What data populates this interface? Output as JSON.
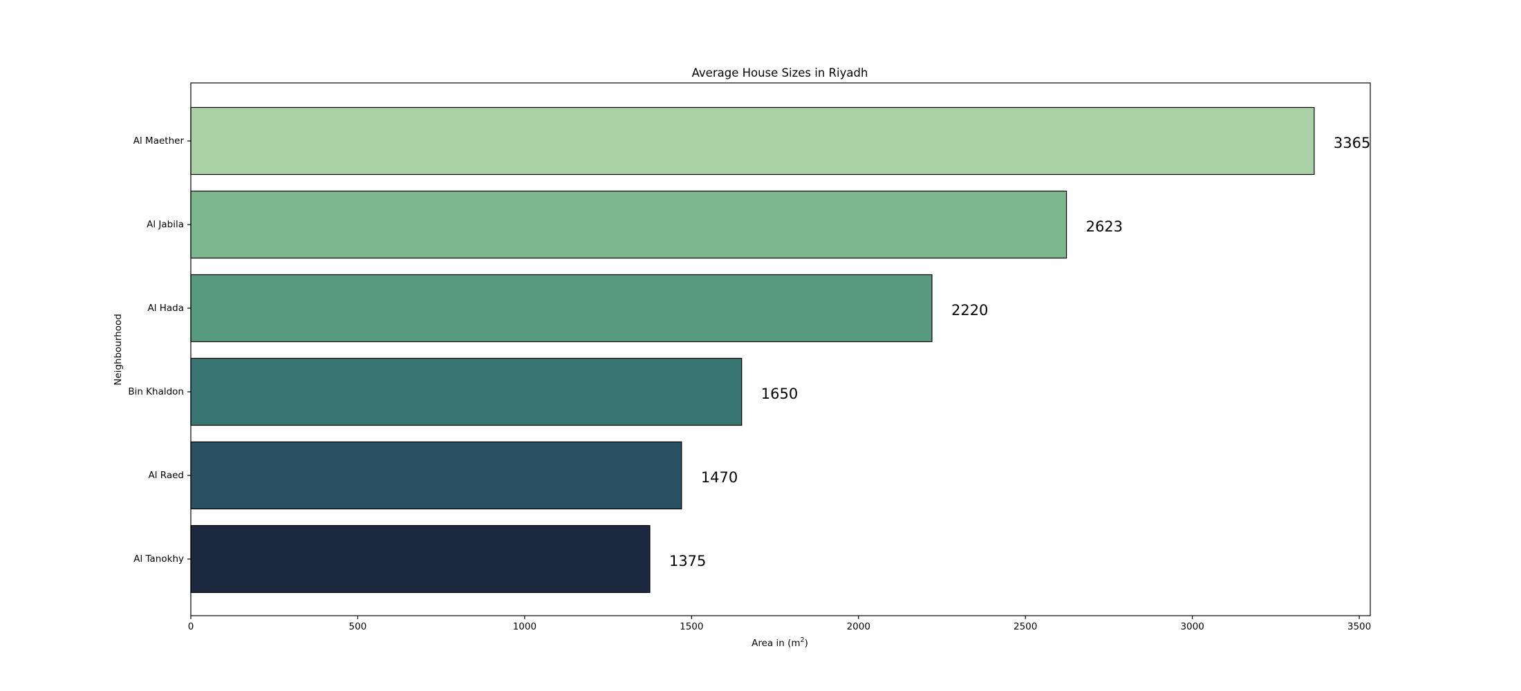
{
  "chart_data": {
    "type": "bar",
    "orientation": "horizontal",
    "title": "Average House Sizes in Riyadh",
    "xlabel": "Area in (m",
    "xlabel_sup": "2",
    "xlabel_end": ")",
    "ylabel": "Neighbourhood",
    "categories": [
      "Al Maether",
      "Al Jabila",
      "Al Hada",
      "Bin Khaldon",
      "Al Raed",
      "Al Tanokhy"
    ],
    "values": [
      3365,
      2623,
      2220,
      1650,
      1470,
      1375
    ],
    "value_labels": [
      "3365",
      "2623",
      "2220",
      "1650",
      "1470",
      "1375"
    ],
    "colors": [
      "#abd1a6",
      "#7db78e",
      "#589a81",
      "#397673",
      "#2a5163",
      "#1b283e"
    ],
    "xlim": [
      0,
      3533
    ],
    "xticks": [
      0,
      500,
      1000,
      1500,
      2000,
      2500,
      3000,
      3500
    ],
    "xtick_labels": [
      "0",
      "500",
      "1000",
      "1500",
      "2000",
      "2500",
      "3000",
      "3500"
    ],
    "grid": false,
    "legend": "none"
  }
}
